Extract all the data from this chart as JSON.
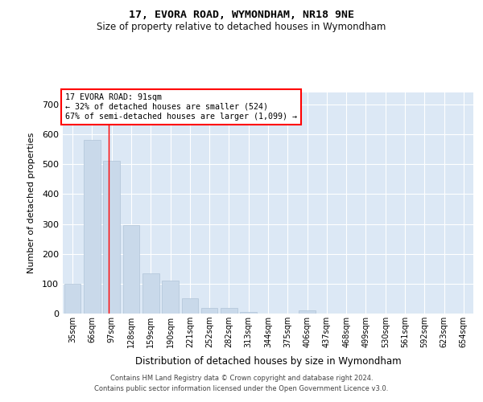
{
  "title": "17, EVORA ROAD, WYMONDHAM, NR18 9NE",
  "subtitle": "Size of property relative to detached houses in Wymondham",
  "xlabel": "Distribution of detached houses by size in Wymondham",
  "ylabel": "Number of detached properties",
  "bar_color": "#c9d9ea",
  "bar_edge_color": "#b0c4d8",
  "bg_color": "#dce8f5",
  "grid_color": "#ffffff",
  "fig_bg_color": "#ffffff",
  "categories": [
    "35sqm",
    "66sqm",
    "97sqm",
    "128sqm",
    "159sqm",
    "190sqm",
    "221sqm",
    "252sqm",
    "282sqm",
    "313sqm",
    "344sqm",
    "375sqm",
    "406sqm",
    "437sqm",
    "468sqm",
    "499sqm",
    "530sqm",
    "561sqm",
    "592sqm",
    "623sqm",
    "654sqm"
  ],
  "values": [
    100,
    580,
    510,
    295,
    135,
    110,
    50,
    20,
    20,
    5,
    0,
    0,
    10,
    0,
    0,
    0,
    0,
    0,
    0,
    0,
    0
  ],
  "property_label": "17 EVORA ROAD: 91sqm",
  "annotation_line1": "← 32% of detached houses are smaller (524)",
  "annotation_line2": "67% of semi-detached houses are larger (1,099) →",
  "vline_pos": 1.84,
  "ylim": [
    0,
    740
  ],
  "yticks": [
    0,
    100,
    200,
    300,
    400,
    500,
    600,
    700
  ],
  "footer_line1": "Contains HM Land Registry data © Crown copyright and database right 2024.",
  "footer_line2": "Contains public sector information licensed under the Open Government Licence v3.0."
}
